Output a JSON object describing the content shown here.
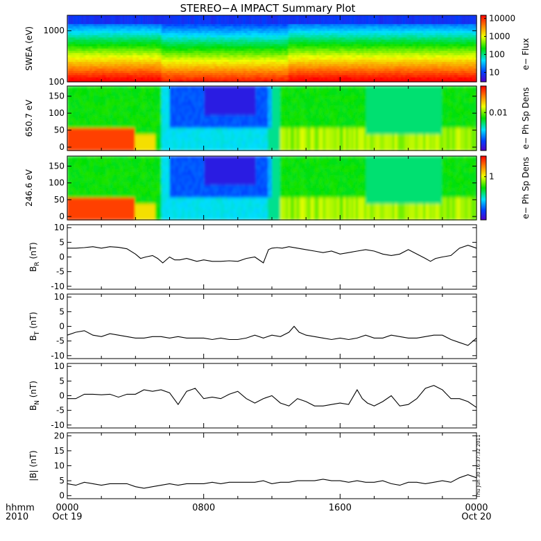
{
  "title": "STEREO−A IMPACT Summary Plot",
  "x_axis": {
    "row1_label": "hhmm",
    "row2_label": "2010",
    "ticks": [
      {
        "hour": 0,
        "label": "0000",
        "date": "Oct 19"
      },
      {
        "hour": 8,
        "label": "0800",
        "date": ""
      },
      {
        "hour": 16,
        "label": "1600",
        "date": ""
      },
      {
        "hour": 24,
        "label": "0000",
        "date": "Oct 20"
      }
    ],
    "range_hours": [
      0,
      24
    ]
  },
  "timestamp": "Thu Jun 30 16:37:32 2011",
  "chart_data": [
    {
      "type": "heatmap",
      "id": "swea",
      "ylabel": "SWEA (eV)",
      "ylim": [
        100,
        2000
      ],
      "log_y": true,
      "yticks": [
        {
          "v": 100,
          "label": "100"
        },
        {
          "v": 1000,
          "label": "1000"
        }
      ],
      "colorbar": {
        "label": "e− Flux",
        "log": true,
        "range": [
          3,
          15000
        ],
        "ticks": [
          {
            "v": 10,
            "label": "10"
          },
          {
            "v": 100,
            "label": "100"
          },
          {
            "v": 1000,
            "label": "1000"
          },
          {
            "v": 10000,
            "label": "10000"
          }
        ]
      }
    },
    {
      "type": "heatmap",
      "id": "pad650",
      "ylabel": "650.7 eV",
      "ylim": [
        -10,
        180
      ],
      "yticks": [
        {
          "v": 0,
          "label": "0"
        },
        {
          "v": 50,
          "label": "50"
        },
        {
          "v": 100,
          "label": "100"
        },
        {
          "v": 150,
          "label": "150"
        }
      ],
      "colorbar": {
        "label": "e− Ph Sp Dens",
        "log": true,
        "range": [
          0.001,
          0.05
        ],
        "ticks": [
          {
            "v": 0.01,
            "label": "0.01"
          }
        ]
      }
    },
    {
      "type": "heatmap",
      "id": "pad246",
      "ylabel": "246.6 eV",
      "ylim": [
        -10,
        180
      ],
      "yticks": [
        {
          "v": 0,
          "label": "0"
        },
        {
          "v": 50,
          "label": "50"
        },
        {
          "v": 100,
          "label": "100"
        },
        {
          "v": 150,
          "label": "150"
        }
      ],
      "colorbar": {
        "label": "e− Ph Sp Dens",
        "log": true,
        "range": [
          0.1,
          3
        ],
        "ticks": [
          {
            "v": 1,
            "label": "1"
          }
        ]
      }
    },
    {
      "type": "line",
      "id": "br",
      "ylabel_main": "B",
      "ylabel_sub": "R",
      "ylabel_tail": " (nT)",
      "ylim": [
        -11,
        11
      ],
      "yticks": [
        -10,
        -5,
        0,
        5,
        10
      ],
      "x": [
        0,
        0.5,
        1,
        1.5,
        2,
        2.5,
        3,
        3.5,
        4,
        4.3,
        4.6,
        5,
        5.3,
        5.6,
        6,
        6.3,
        6.6,
        7,
        7.3,
        7.6,
        8,
        8.5,
        9,
        9.5,
        10,
        10.5,
        11,
        11.5,
        11.8,
        12,
        12.3,
        12.6,
        13,
        13.5,
        14,
        14.5,
        15,
        15.5,
        16,
        16.5,
        17,
        17.5,
        18,
        18.5,
        19,
        19.5,
        20,
        20.5,
        21,
        21.3,
        21.6,
        22,
        22.5,
        23,
        23.5,
        24
      ],
      "y": [
        3,
        3,
        3.2,
        3.5,
        3,
        3.5,
        3.3,
        2.8,
        1,
        -0.5,
        0,
        0.5,
        -0.5,
        -2,
        0,
        -1,
        -1,
        -0.5,
        -1,
        -1.5,
        -1,
        -1.5,
        -1.5,
        -1.3,
        -1.5,
        -0.5,
        0,
        -2,
        2.5,
        3,
        3.2,
        3,
        3.5,
        3,
        2.5,
        2,
        1.5,
        2,
        1,
        1.5,
        2,
        2.5,
        2,
        1,
        0.5,
        1,
        2.5,
        1,
        -0.5,
        -1.5,
        -0.5,
        0,
        0.5,
        3,
        4,
        3
      ]
    },
    {
      "type": "line",
      "id": "bt",
      "ylabel_main": "B",
      "ylabel_sub": "T",
      "ylabel_tail": " (nT)",
      "ylim": [
        -11,
        11
      ],
      "yticks": [
        -10,
        -5,
        0,
        5,
        10
      ],
      "x": [
        0,
        0.5,
        1,
        1.5,
        2,
        2.5,
        3,
        3.5,
        4,
        4.5,
        5,
        5.5,
        6,
        6.5,
        7,
        7.5,
        8,
        8.5,
        9,
        9.5,
        10,
        10.5,
        11,
        11.5,
        12,
        12.5,
        13,
        13.3,
        13.6,
        14,
        14.5,
        15,
        15.5,
        16,
        16.5,
        17,
        17.5,
        18,
        18.5,
        19,
        19.5,
        20,
        20.5,
        21,
        21.5,
        22,
        22.5,
        23,
        23.5,
        24
      ],
      "y": [
        -3,
        -2,
        -1.5,
        -3,
        -3.5,
        -2.5,
        -3,
        -3.5,
        -4,
        -4,
        -3.5,
        -3.5,
        -4,
        -3.5,
        -4,
        -4,
        -4,
        -4.5,
        -4,
        -4.5,
        -4.5,
        -4,
        -3,
        -4,
        -3,
        -3.5,
        -2,
        0,
        -2,
        -3,
        -3.5,
        -4,
        -4.5,
        -4,
        -4.5,
        -4,
        -3,
        -4,
        -4,
        -3,
        -3.5,
        -4,
        -4,
        -3.5,
        -3,
        -3,
        -4.5,
        -5.5,
        -6.5,
        -4
      ]
    },
    {
      "type": "line",
      "id": "bn",
      "ylabel_main": "B",
      "ylabel_sub": "N",
      "ylabel_tail": " (nT)",
      "ylim": [
        -11,
        11
      ],
      "yticks": [
        -10,
        -5,
        0,
        5,
        10
      ],
      "x": [
        0,
        0.5,
        1,
        1.5,
        2,
        2.5,
        3,
        3.5,
        4,
        4.5,
        5,
        5.5,
        6,
        6.5,
        7,
        7.5,
        8,
        8.5,
        9,
        9.5,
        10,
        10.5,
        11,
        11.5,
        12,
        12.5,
        13,
        13.5,
        14,
        14.5,
        15,
        15.5,
        16,
        16.5,
        17,
        17.3,
        17.6,
        18,
        18.5,
        19,
        19.5,
        20,
        20.5,
        21,
        21.5,
        22,
        22.5,
        23,
        23.5,
        24
      ],
      "y": [
        -1,
        -1,
        0.5,
        0.5,
        0.3,
        0.5,
        -0.5,
        0.5,
        0.5,
        2,
        1.5,
        2,
        1,
        -3,
        1.5,
        2.5,
        -1,
        -0.5,
        -1,
        0.5,
        1.5,
        -1,
        -2.5,
        -1,
        0,
        -2.5,
        -3.5,
        -1,
        -2,
        -3.5,
        -3.5,
        -3,
        -2.5,
        -3,
        2,
        -1,
        -2.5,
        -3.5,
        -2,
        0,
        -3.5,
        -3,
        -1,
        2.5,
        3.5,
        2,
        -1,
        -1,
        -2,
        -4
      ]
    },
    {
      "type": "line",
      "id": "bmag",
      "ylabel_main": "|B| (nT)",
      "ylabel_sub": "",
      "ylabel_tail": "",
      "ylim": [
        -1,
        21
      ],
      "yticks": [
        0,
        5,
        10,
        15,
        20
      ],
      "x": [
        0,
        0.5,
        1,
        1.5,
        2,
        2.5,
        3,
        3.5,
        4,
        4.5,
        5,
        5.5,
        6,
        6.5,
        7,
        7.5,
        8,
        8.5,
        9,
        9.5,
        10,
        10.5,
        11,
        11.5,
        12,
        12.5,
        13,
        13.5,
        14,
        14.5,
        15,
        15.5,
        16,
        16.5,
        17,
        17.5,
        18,
        18.5,
        19,
        19.5,
        20,
        20.5,
        21,
        21.5,
        22,
        22.5,
        23,
        23.5,
        24
      ],
      "y": [
        4,
        3.5,
        4.5,
        4,
        3.5,
        4,
        4,
        4,
        3,
        2.5,
        3,
        3.5,
        4,
        3.5,
        4,
        4,
        4,
        4.5,
        4,
        4.5,
        4.5,
        4.5,
        4.5,
        5,
        4,
        4.5,
        4.5,
        5,
        5,
        5,
        5.5,
        5,
        5,
        4.5,
        5,
        4.5,
        4.5,
        5,
        4,
        3.5,
        4.5,
        4.5,
        4,
        4.5,
        5,
        4.5,
        6,
        7,
        6
      ]
    }
  ]
}
